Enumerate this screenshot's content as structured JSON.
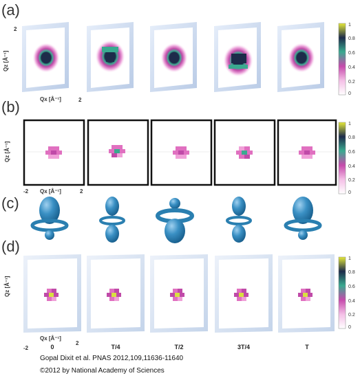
{
  "panels": {
    "a": {
      "label": "(a)",
      "axis_z": "Qz [Å⁻¹]",
      "axis_x": "Qx [Å⁻¹]",
      "tick_top": "2",
      "tick_right": "2"
    },
    "b": {
      "label": "(b)",
      "axis_z": "Qz [Å⁻¹]",
      "axis_x": "Qx [Å⁻¹]",
      "tick_left": "-2",
      "tick_right": "2"
    },
    "c": {
      "label": "(c)"
    },
    "d": {
      "label": "(d)",
      "axis_z": "Qz [Å⁻¹]",
      "axis_x": "Qx [Å⁻¹]",
      "tick_left": "-2",
      "tick_right": "2"
    }
  },
  "colorbar": {
    "ticks": [
      "1",
      "0.8",
      "0.6",
      "0.4",
      "0.2",
      "0"
    ]
  },
  "time_labels": [
    "0",
    "T/4",
    "T/2",
    "3T/4",
    "T"
  ],
  "credits": {
    "citation": "Gopal Dixit et al. PNAS 2012,109,11636-11640",
    "copyright": "©2012 by National Academy of Sciences"
  },
  "colors": {
    "frame_light": "#c9d9ee",
    "pattern_pink": "#e070c0",
    "pattern_teal": "#3aaa90",
    "pattern_dark": "#1d2b4a",
    "pattern_yellow": "#d8e040",
    "orbital": "#2a7fb0"
  }
}
